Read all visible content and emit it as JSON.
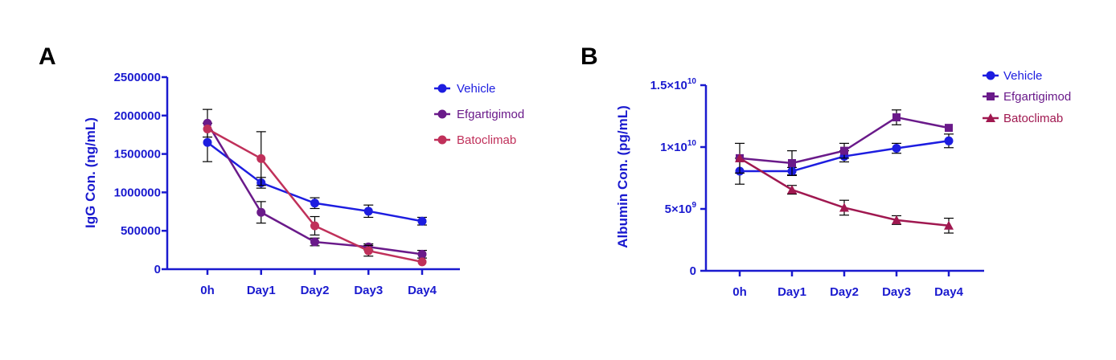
{
  "colors": {
    "axis": "#1a1acf",
    "vehicle": "#1d1de0",
    "efgartigimod": "#6a1a8a",
    "batoclimab_a": "#c0305a",
    "batoclimab_b": "#a01850",
    "error_bar": "#000000"
  },
  "chart_data": [
    {
      "panel": "A",
      "type": "line",
      "title": "",
      "xlabel": "",
      "ylabel": "IgG Con. (ng/mL)",
      "categories": [
        "0h",
        "Day1",
        "Day2",
        "Day3",
        "Day4"
      ],
      "ylim": [
        0,
        2500000
      ],
      "yticks": [
        0,
        500000,
        1000000,
        1500000,
        2000000,
        2500000
      ],
      "ytick_labels": [
        "0",
        "500000",
        "1000000",
        "1500000",
        "2000000",
        "2500000"
      ],
      "legend": "top-right",
      "series": [
        {
          "name": "Vehicle",
          "marker": "circle",
          "color": "#1d1de0",
          "values": [
            1650000,
            1125000,
            860000,
            755000,
            625000
          ],
          "errors": [
            250000,
            70000,
            70000,
            80000,
            50000
          ]
        },
        {
          "name": "Efgartigimod",
          "marker": "circle",
          "color": "#6a1a8a",
          "values": [
            1900000,
            740000,
            355000,
            290000,
            195000
          ],
          "errors": [
            180000,
            140000,
            50000,
            40000,
            50000
          ]
        },
        {
          "name": "Batoclimab",
          "marker": "circle",
          "color": "#c0305a",
          "values": [
            1825000,
            1440000,
            565000,
            240000,
            95000
          ],
          "errors": [
            0,
            350000,
            120000,
            70000,
            0
          ]
        }
      ]
    },
    {
      "panel": "B",
      "type": "line",
      "title": "",
      "xlabel": "",
      "ylabel": "Albumin Con. (pg/mL)",
      "categories": [
        "0h",
        "Day1",
        "Day2",
        "Day3",
        "Day4"
      ],
      "ylim": [
        0,
        15000000000
      ],
      "yticks": [
        0,
        5000000000,
        10000000000,
        15000000000
      ],
      "ytick_labels": [
        {
          "base": "0",
          "exp": ""
        },
        {
          "base": "5×10",
          "exp": "9"
        },
        {
          "base": "1×10",
          "exp": "10"
        },
        {
          "base": "1.5×10",
          "exp": "10"
        }
      ],
      "legend": "top-right",
      "series": [
        {
          "name": "Vehicle",
          "marker": "circle",
          "color": "#1d1de0",
          "values": [
            8050000000,
            8050000000,
            9250000000,
            9900000000,
            10500000000
          ],
          "errors": [
            1050000000,
            300000000,
            450000000,
            400000000,
            550000000
          ]
        },
        {
          "name": "Efgartigimod",
          "marker": "square",
          "color": "#6a1a8a",
          "values": [
            9100000000,
            8700000000,
            9700000000,
            12400000000,
            11550000000
          ],
          "errors": [
            1200000000,
            1000000000,
            600000000,
            600000000,
            0
          ]
        },
        {
          "name": "Batoclimab",
          "marker": "triangle",
          "color": "#a01850",
          "values": [
            9100000000,
            6550000000,
            5100000000,
            4100000000,
            3650000000
          ],
          "errors": [
            0,
            350000000,
            600000000,
            350000000,
            600000000
          ]
        }
      ]
    }
  ]
}
